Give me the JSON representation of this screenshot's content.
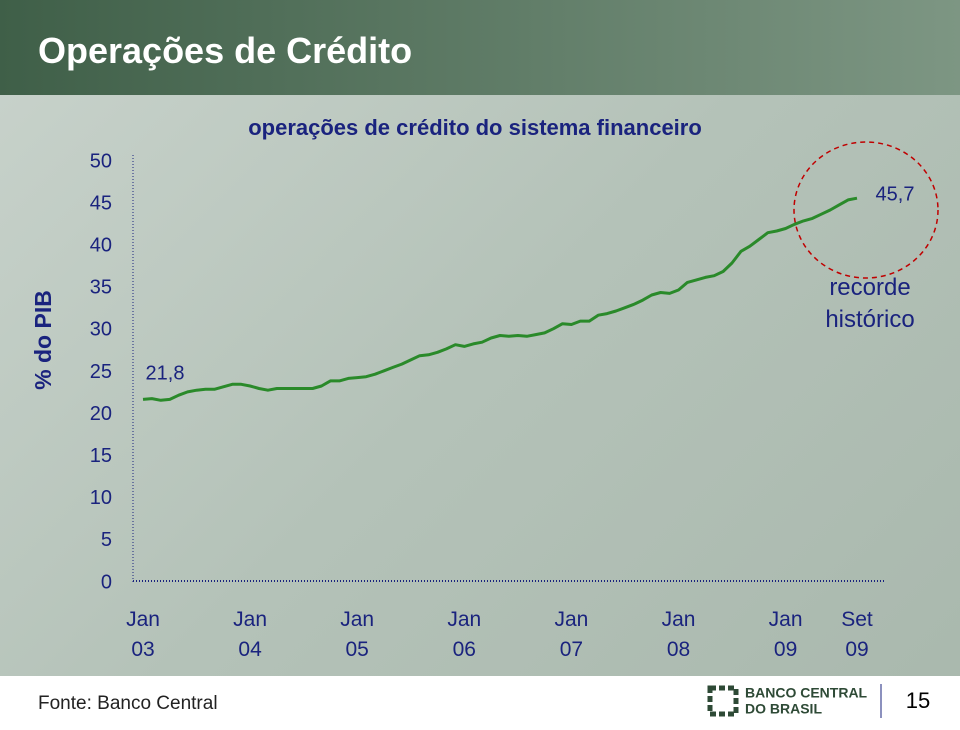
{
  "header": {
    "title": "Operações de Crédito"
  },
  "chart_data": {
    "type": "line",
    "title": "operações de crédito do sistema financeiro",
    "y_label": "% do PIB",
    "categories": [
      "Jan 03",
      null,
      null,
      null,
      null,
      null,
      null,
      null,
      null,
      null,
      null,
      null,
      "Jan 04",
      null,
      null,
      null,
      null,
      null,
      null,
      null,
      null,
      null,
      null,
      null,
      "Jan 05",
      null,
      null,
      null,
      null,
      null,
      null,
      null,
      null,
      null,
      null,
      null,
      "Jan 06",
      null,
      null,
      null,
      null,
      null,
      null,
      null,
      null,
      null,
      null,
      null,
      "Jan 07",
      null,
      null,
      null,
      null,
      null,
      null,
      null,
      null,
      null,
      null,
      null,
      "Jan 08",
      null,
      null,
      null,
      null,
      null,
      null,
      null,
      null,
      null,
      null,
      null,
      "Jan 09",
      null,
      null,
      null,
      null,
      null,
      null,
      null,
      "Set 09"
    ],
    "values": [
      21.8,
      21.9,
      21.7,
      21.8,
      22.3,
      22.7,
      22.9,
      23.0,
      23.0,
      23.3,
      23.6,
      23.6,
      23.4,
      23.1,
      22.9,
      23.1,
      23.1,
      23.1,
      23.1,
      23.1,
      23.4,
      24.0,
      24.0,
      24.3,
      24.4,
      24.5,
      24.8,
      25.2,
      25.6,
      26.0,
      26.5,
      27.0,
      27.1,
      27.4,
      27.8,
      28.3,
      28.1,
      28.4,
      28.6,
      29.1,
      29.4,
      29.3,
      29.4,
      29.3,
      29.5,
      29.7,
      30.2,
      30.8,
      30.7,
      31.1,
      31.1,
      31.8,
      32.0,
      32.3,
      32.7,
      33.1,
      33.6,
      34.2,
      34.5,
      34.4,
      34.8,
      35.7,
      36.0,
      36.3,
      36.5,
      37.0,
      38.0,
      39.4,
      40.0,
      40.8,
      41.6,
      41.8,
      42.1,
      42.6,
      43.0,
      43.3,
      43.8,
      44.3,
      44.9,
      45.5,
      45.7
    ],
    "value_labels": [
      "21,8",
      null,
      null,
      null,
      null,
      null,
      null,
      null,
      null,
      null,
      null,
      null,
      null,
      null,
      null,
      null,
      null,
      null,
      null,
      null,
      null,
      null,
      null,
      null,
      null,
      null,
      null,
      null,
      null,
      null,
      null,
      null,
      null,
      null,
      null,
      null,
      null,
      null,
      null,
      null,
      null,
      null,
      null,
      null,
      null,
      null,
      null,
      null,
      null,
      null,
      null,
      null,
      null,
      null,
      null,
      null,
      null,
      null,
      null,
      null,
      null,
      null,
      null,
      null,
      null,
      null,
      null,
      null,
      null,
      null,
      null,
      null,
      null,
      null,
      null,
      null,
      null,
      null,
      null,
      null,
      "45,7"
    ],
    "color": "#2a8a2a",
    "annotation": "recorde histórico",
    "ylim": [
      0,
      50
    ],
    "yticks": [
      0,
      5,
      10,
      15,
      20,
      25,
      30,
      35,
      40,
      45,
      50
    ]
  },
  "footer": {
    "source": "Fonte: Banco Central",
    "logo": [
      "BANCO CENTRAL",
      "DO BRASIL"
    ],
    "page": "15"
  }
}
